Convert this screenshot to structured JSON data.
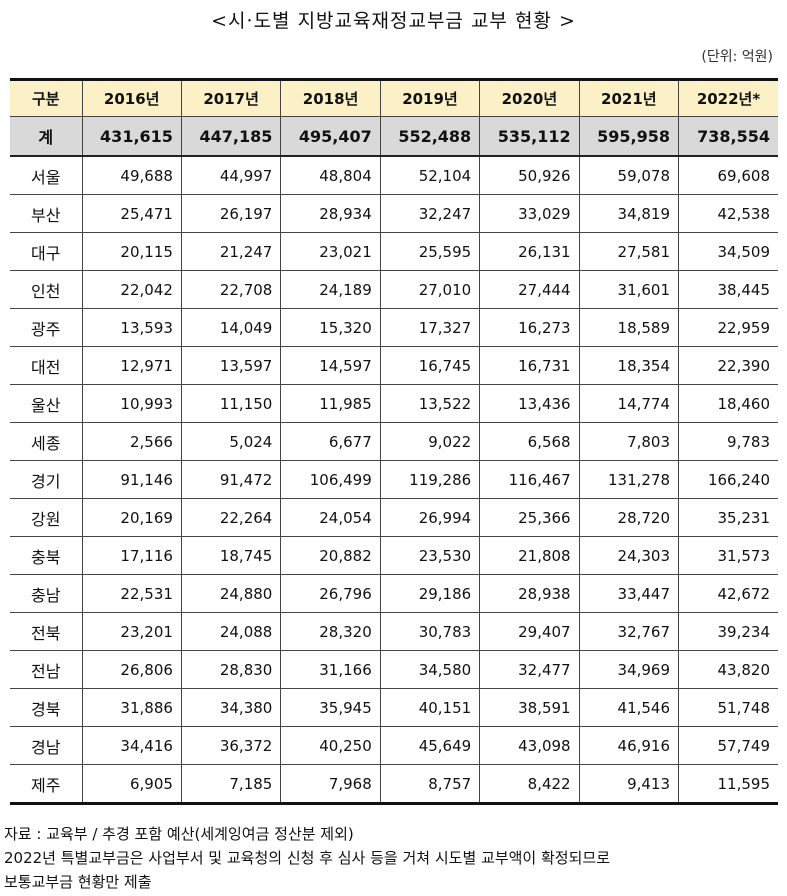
{
  "title": "<시·도별 지방교육재정교부금 교부 현황 >",
  "unit": "(단위: 억원)",
  "headers": [
    "구분",
    "2016년",
    "2017년",
    "2018년",
    "2019년",
    "2020년",
    "2021년",
    "2022년*"
  ],
  "total": {
    "name": "계",
    "values": [
      "431,615",
      "447,185",
      "495,407",
      "552,488",
      "535,112",
      "595,958",
      "738,554"
    ]
  },
  "rows": [
    {
      "name": "서울",
      "values": [
        "49,688",
        "44,997",
        "48,804",
        "52,104",
        "50,926",
        "59,078",
        "69,608"
      ]
    },
    {
      "name": "부산",
      "values": [
        "25,471",
        "26,197",
        "28,934",
        "32,247",
        "33,029",
        "34,819",
        "42,538"
      ]
    },
    {
      "name": "대구",
      "values": [
        "20,115",
        "21,247",
        "23,021",
        "25,595",
        "26,131",
        "27,581",
        "34,509"
      ]
    },
    {
      "name": "인천",
      "values": [
        "22,042",
        "22,708",
        "24,189",
        "27,010",
        "27,444",
        "31,601",
        "38,445"
      ]
    },
    {
      "name": "광주",
      "values": [
        "13,593",
        "14,049",
        "15,320",
        "17,327",
        "16,273",
        "18,589",
        "22,959"
      ]
    },
    {
      "name": "대전",
      "values": [
        "12,971",
        "13,597",
        "14,597",
        "16,745",
        "16,731",
        "18,354",
        "22,390"
      ]
    },
    {
      "name": "울산",
      "values": [
        "10,993",
        "11,150",
        "11,985",
        "13,522",
        "13,436",
        "14,774",
        "18,460"
      ]
    },
    {
      "name": "세종",
      "values": [
        "2,566",
        "5,024",
        "6,677",
        "9,022",
        "6,568",
        "7,803",
        "9,783"
      ]
    },
    {
      "name": "경기",
      "values": [
        "91,146",
        "91,472",
        "106,499",
        "119,286",
        "116,467",
        "131,278",
        "166,240"
      ]
    },
    {
      "name": "강원",
      "values": [
        "20,169",
        "22,264",
        "24,054",
        "26,994",
        "25,366",
        "28,720",
        "35,231"
      ]
    },
    {
      "name": "충북",
      "values": [
        "17,116",
        "18,745",
        "20,882",
        "23,530",
        "21,808",
        "24,303",
        "31,573"
      ]
    },
    {
      "name": "충남",
      "values": [
        "22,531",
        "24,880",
        "26,796",
        "29,186",
        "28,938",
        "33,447",
        "42,672"
      ]
    },
    {
      "name": "전북",
      "values": [
        "23,201",
        "24,088",
        "28,320",
        "30,783",
        "29,407",
        "32,767",
        "39,234"
      ]
    },
    {
      "name": "전남",
      "values": [
        "26,806",
        "28,830",
        "31,166",
        "34,580",
        "32,477",
        "34,969",
        "43,820"
      ]
    },
    {
      "name": "경북",
      "values": [
        "31,886",
        "34,380",
        "35,945",
        "40,151",
        "38,591",
        "41,546",
        "51,748"
      ]
    },
    {
      "name": "경남",
      "values": [
        "34,416",
        "36,372",
        "40,250",
        "45,649",
        "43,098",
        "46,916",
        "57,749"
      ]
    },
    {
      "name": "제주",
      "values": [
        "6,905",
        "7,185",
        "7,968",
        "8,757",
        "8,422",
        "9,413",
        "11,595"
      ]
    }
  ],
  "notes": [
    "자료 : 교육부 / 추경 포함 예산(세계잉여금 정산분 제외)",
    "2022년 특별교부금은 사업부서 및 교육청의 신청 후 심사 등을 거쳐 시도별 교부액이 확정되므로",
    "보통교부금 현황만 제출"
  ]
}
